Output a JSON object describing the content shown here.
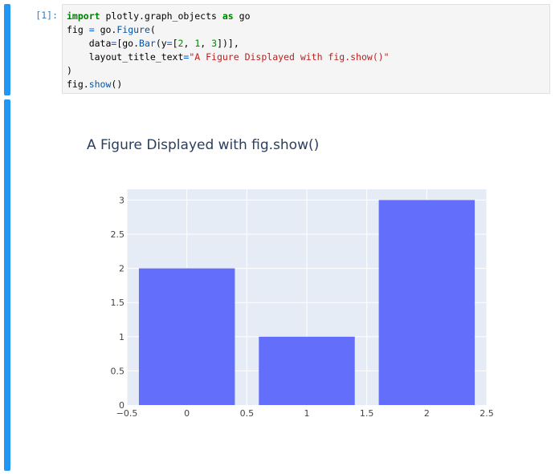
{
  "cell": {
    "prompt": "[1]:",
    "code_lines": [
      [
        {
          "t": "import",
          "c": "kw"
        },
        {
          "t": " plotly.graph_objects ",
          "c": ""
        },
        {
          "t": "as",
          "c": "kw"
        },
        {
          "t": " go",
          "c": ""
        }
      ],
      [
        {
          "t": "fig ",
          "c": ""
        },
        {
          "t": "=",
          "c": "pun"
        },
        {
          "t": " go.",
          "c": ""
        },
        {
          "t": "Figure",
          "c": "fn"
        },
        {
          "t": "(",
          "c": ""
        }
      ],
      [
        {
          "t": "    data",
          "c": ""
        },
        {
          "t": "=",
          "c": "pun"
        },
        {
          "t": "[go.",
          "c": ""
        },
        {
          "t": "Bar",
          "c": "fn"
        },
        {
          "t": "(y",
          "c": ""
        },
        {
          "t": "=",
          "c": "pun"
        },
        {
          "t": "[",
          "c": ""
        },
        {
          "t": "2",
          "c": "num"
        },
        {
          "t": ", ",
          "c": ""
        },
        {
          "t": "1",
          "c": "num"
        },
        {
          "t": ", ",
          "c": ""
        },
        {
          "t": "3",
          "c": "num"
        },
        {
          "t": "])],",
          "c": ""
        }
      ],
      [
        {
          "t": "    layout_title_text",
          "c": ""
        },
        {
          "t": "=",
          "c": "pun"
        },
        {
          "t": "\"A Figure Displayed with fig.show()\"",
          "c": "str"
        }
      ],
      [
        {
          "t": ")",
          "c": ""
        }
      ],
      [
        {
          "t": "fig.",
          "c": ""
        },
        {
          "t": "show",
          "c": "fn"
        },
        {
          "t": "()",
          "c": ""
        }
      ]
    ]
  },
  "colors": {
    "cell_accent": "#2196f3",
    "bar": "#636efa",
    "plot_background": "#e5ecf6",
    "grid": "#ffffff"
  },
  "chart_data": {
    "type": "bar",
    "title": "A Figure Displayed with fig.show()",
    "x": [
      0,
      1,
      2
    ],
    "values": [
      2,
      1,
      3
    ],
    "xlabel": "",
    "ylabel": "",
    "xlim": [
      -0.5,
      2.5
    ],
    "ylim": [
      0,
      3.157
    ],
    "x_ticks": [
      {
        "v": -0.5,
        "label": "−0.5"
      },
      {
        "v": 0,
        "label": "0"
      },
      {
        "v": 0.5,
        "label": "0.5"
      },
      {
        "v": 1,
        "label": "1"
      },
      {
        "v": 1.5,
        "label": "1.5"
      },
      {
        "v": 2,
        "label": "2"
      },
      {
        "v": 2.5,
        "label": "2.5"
      }
    ],
    "y_ticks": [
      {
        "v": 0,
        "label": "0"
      },
      {
        "v": 0.5,
        "label": "0.5"
      },
      {
        "v": 1,
        "label": "1"
      },
      {
        "v": 1.5,
        "label": "1.5"
      },
      {
        "v": 2,
        "label": "2"
      },
      {
        "v": 2.5,
        "label": "2.5"
      },
      {
        "v": 3,
        "label": "3"
      }
    ],
    "grid": true,
    "bar_width": 0.8
  }
}
